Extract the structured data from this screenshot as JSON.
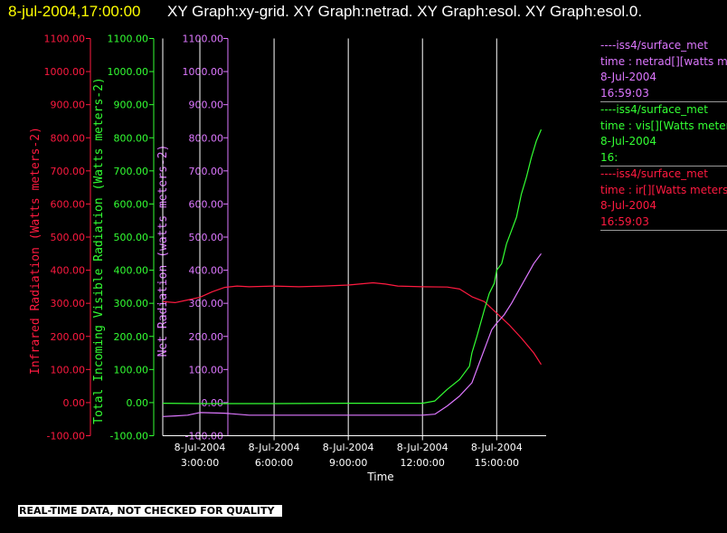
{
  "header": {
    "title_date": "8-jul-2004,17:00:00",
    "title_graphs": "XY Graph:xy-grid.  XY Graph:netrad.  XY Graph:esol.  XY Graph:esol.0."
  },
  "colors": {
    "ir": "#ff1a40",
    "vis": "#33ff33",
    "net": "#dd77ff",
    "title_date": "#ffff00",
    "grid": "#ffffff"
  },
  "legend": {
    "entries": [
      {
        "source": "----iss4/surface_met",
        "var": "time : netrad[][watts meters-2]",
        "date": "8-Jul-2004",
        "time": "16:59:03",
        "color": "#dd77ff"
      },
      {
        "source": "----iss4/surface_met",
        "var": "time : vis[][Watts meters-2]",
        "date": "8-Jul-2004",
        "time": "16:",
        "color": "#33ff33"
      },
      {
        "source": "----iss4/surface_met",
        "var": "time : ir[][Watts meters-2]",
        "date": "8-Jul-2004",
        "time": "16:59:03",
        "color": "#ff1a40"
      }
    ]
  },
  "footer": {
    "notice": "REAL-TIME DATA, NOT CHECKED FOR QUALITY"
  },
  "chart_data": {
    "type": "line",
    "xlabel": "Time",
    "x_unit": "hours of 8-Jul-2004",
    "xlim": [
      1.5,
      17.0
    ],
    "x_ticks": [
      {
        "value": 3,
        "date": "8-Jul-2004",
        "time": "3:00:00"
      },
      {
        "value": 6,
        "date": "8-Jul-2004",
        "time": "6:00:00"
      },
      {
        "value": 9,
        "date": "8-Jul-2004",
        "time": "9:00:00"
      },
      {
        "value": 12,
        "date": "8-Jul-2004",
        "time": "12:00:00"
      },
      {
        "value": 15,
        "date": "8-Jul-2004",
        "time": "15:00:00"
      }
    ],
    "y_ticks": [
      "1100.00",
      "1000.00",
      "900.00",
      "800.00",
      "700.00",
      "600.00",
      "500.00",
      "400.00",
      "300.00",
      "200.00",
      "100.00",
      "0.00",
      "-100.00"
    ],
    "ylim": [
      -100,
      1100
    ],
    "axes": [
      {
        "label": "Infrared Radiation (Watts meters-2)",
        "color": "#ff1a40"
      },
      {
        "label": "Total Incoming Visible Radiation (Watts meters-2)",
        "color": "#33ff33"
      },
      {
        "label": "Net Radiation (watts meters-2)",
        "color": "#dd77ff"
      }
    ],
    "grid": "vertical lines at x ticks",
    "series": [
      {
        "key": "ir",
        "color": "#ff1a40",
        "x": [
          1.5,
          2.0,
          2.5,
          3.0,
          3.5,
          4.0,
          4.5,
          5.0,
          6.0,
          7.0,
          8.0,
          9.0,
          10.0,
          10.5,
          11.0,
          12.0,
          13.0,
          13.5,
          14.0,
          14.5,
          15.0,
          15.5,
          16.0,
          16.5,
          16.8
        ],
        "y": [
          305,
          302,
          310,
          318,
          335,
          348,
          352,
          350,
          352,
          350,
          352,
          355,
          362,
          358,
          352,
          350,
          349,
          343,
          320,
          305,
          270,
          235,
          195,
          150,
          115
        ]
      },
      {
        "key": "vis",
        "color": "#33ff33",
        "x": [
          1.5,
          3.0,
          6.0,
          9.0,
          12.0,
          12.5,
          13.0,
          13.5,
          13.9,
          14.0,
          14.2,
          14.5,
          14.7,
          14.9,
          15.0,
          15.2,
          15.4,
          15.6,
          15.8,
          16.0,
          16.2,
          16.4,
          16.6,
          16.8
        ],
        "y": [
          -2,
          -3,
          -3,
          -2,
          -2,
          5,
          40,
          70,
          110,
          150,
          200,
          280,
          330,
          360,
          400,
          420,
          480,
          520,
          560,
          630,
          680,
          740,
          790,
          825
        ]
      },
      {
        "key": "net",
        "color": "#dd77ff",
        "x": [
          1.5,
          2.0,
          2.5,
          3.0,
          4.0,
          5.0,
          6.0,
          7.0,
          8.0,
          9.0,
          10.0,
          11.0,
          12.0,
          12.5,
          13.0,
          13.5,
          14.0,
          14.3,
          14.6,
          14.8,
          15.0,
          15.3,
          15.6,
          15.9,
          16.2,
          16.5,
          16.8
        ],
        "y": [
          -42,
          -40,
          -38,
          -30,
          -32,
          -38,
          -38,
          -38,
          -38,
          -38,
          -38,
          -38,
          -38,
          -35,
          -10,
          20,
          60,
          120,
          180,
          220,
          240,
          265,
          300,
          340,
          380,
          420,
          450
        ]
      }
    ]
  }
}
